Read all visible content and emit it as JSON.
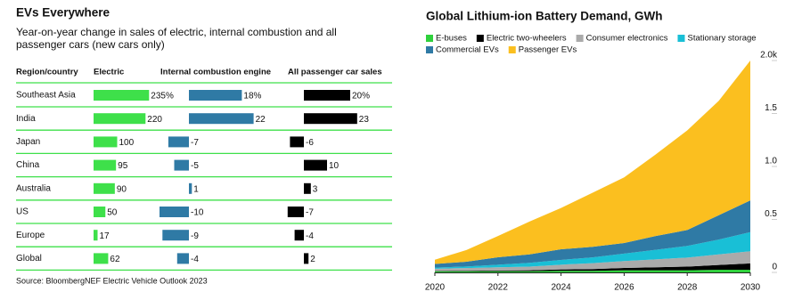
{
  "table": {
    "title": "EVs Everywhere",
    "subtitle": "Year-on-year change in sales of electric, internal combustion and all passenger cars (new cars only)",
    "row_header": "Region/country",
    "categories": [
      "Southeast Asia",
      "India",
      "Japan",
      "China",
      "Australia",
      "US",
      "Europe",
      "Global"
    ],
    "columns": [
      {
        "name": "Electric",
        "color": "#3ee04a",
        "values": [
          235,
          220,
          100,
          95,
          90,
          50,
          17,
          62
        ],
        "value_labels": [
          "235%",
          "220",
          "100",
          "95",
          "90",
          "50",
          "17",
          "62"
        ]
      },
      {
        "name": "Internal combustion engine",
        "color": "#2f7aa5",
        "values": [
          18,
          22,
          -7,
          -5,
          1,
          -10,
          -9,
          -4
        ],
        "value_labels": [
          "18%",
          "22",
          "-7",
          "-5",
          "1",
          "-10",
          "-9",
          "-4"
        ]
      },
      {
        "name": "All passenger car sales",
        "color": "#000000",
        "values": [
          20,
          23,
          -6,
          10,
          3,
          -7,
          -4,
          2
        ],
        "value_labels": [
          "20%",
          "23",
          "-6",
          "10",
          "3",
          "-7",
          "-4",
          "2"
        ]
      }
    ],
    "source": "Source: BloombergNEF Electric Vehicle Outlook 2023"
  },
  "chart_data": {
    "type": "stacked_area",
    "title": "Global Lithium-ion Battery Demand, GWh",
    "x": [
      2020,
      2021,
      2022,
      2023,
      2024,
      2025,
      2026,
      2027,
      2028,
      2029,
      2030
    ],
    "xlim": [
      2020,
      2030
    ],
    "xticks": [
      2020,
      2022,
      2024,
      2026,
      2028,
      2030
    ],
    "ylim": [
      0,
      2
    ],
    "yticks": [
      0,
      0.5,
      {
        "value": 1,
        "label": "1.0"
      },
      1.5,
      {
        "value": 2,
        "label": "2.0k"
      }
    ],
    "grid": false,
    "series": [
      {
        "name": "E-buses",
        "color": "#2fd13c",
        "values": [
          0.01,
          0.01,
          0.01,
          0.01,
          0.015,
          0.015,
          0.02,
          0.02,
          0.02,
          0.025,
          0.025
        ]
      },
      {
        "name": "Electric two-wheelers",
        "color": "#000000",
        "values": [
          0.005,
          0.006,
          0.008,
          0.01,
          0.013,
          0.017,
          0.022,
          0.028,
          0.035,
          0.045,
          0.06
        ]
      },
      {
        "name": "Consumer electronics",
        "color": "#aaaaaa",
        "values": [
          0.02,
          0.025,
          0.03,
          0.035,
          0.045,
          0.055,
          0.065,
          0.075,
          0.085,
          0.1,
          0.115
        ]
      },
      {
        "name": "Stationary storage",
        "color": "#19bfd6",
        "values": [
          0.01,
          0.015,
          0.025,
          0.035,
          0.045,
          0.055,
          0.07,
          0.09,
          0.11,
          0.14,
          0.18
        ]
      },
      {
        "name": "Commercial EVs",
        "color": "#2f7aa5",
        "values": [
          0.035,
          0.045,
          0.07,
          0.08,
          0.1,
          0.1,
          0.1,
          0.13,
          0.15,
          0.23,
          0.3
        ]
      },
      {
        "name": "Passenger EVs",
        "color": "#fbbf1f",
        "values": [
          0.04,
          0.11,
          0.2,
          0.31,
          0.39,
          0.51,
          0.62,
          0.77,
          0.94,
          1.08,
          1.32
        ]
      }
    ]
  }
}
